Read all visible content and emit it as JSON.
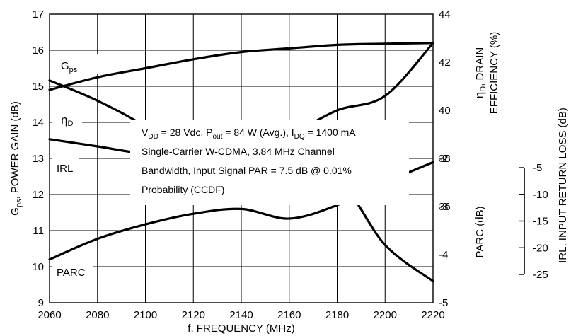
{
  "chart_data": {
    "type": "line",
    "xlabel": "f, FREQUENCY (MHz)",
    "x_ticks": [
      "2060",
      "2080",
      "2100",
      "2120",
      "2140",
      "2160",
      "2180",
      "2200",
      "2220"
    ],
    "xlim": [
      2060,
      2220
    ],
    "left_axis": {
      "label_main": "G",
      "label_sub": "ps",
      "label_rest": ", POWER GAIN (dB)",
      "ylim": [
        9,
        17
      ],
      "ticks": [
        "9",
        "10",
        "11",
        "12",
        "13",
        "14",
        "15",
        "16",
        "17"
      ]
    },
    "right_axis_upper": {
      "label_line1_sym": "η",
      "label_line1_sub": "D",
      "label_line1_rest": ", DRAIN",
      "label_line2": "EFFICIENCY (%)",
      "ylim": [
        32,
        44
      ],
      "ticks": [
        "44",
        "42",
        "40",
        "38",
        "36"
      ]
    },
    "right_axis_lower": {
      "label": "PARC (dB)",
      "ylim": [
        -5,
        1
      ],
      "ticks": [
        "-2",
        "-3",
        "-4",
        "-5"
      ]
    },
    "irl_axis": {
      "label": "IRL, INPUT RETURN LOSS (dB)",
      "ylim": [
        -25,
        -5
      ],
      "ticks": [
        "-5",
        "-10",
        "-15",
        "-20",
        "-25"
      ]
    },
    "annotation": {
      "line1": {
        "v": "V",
        "v_sub": "DD",
        "a": " = 28 Vdc, P",
        "p_sub": "out",
        "b": " = 84 W (Avg.), I",
        "i_sub": "DQ",
        "c": " = 1400 mA"
      },
      "line2": "Single-Carrier W-CDMA, 3.84 MHz Channel",
      "line3": "Bandwidth, Input Signal PAR = 7.5 dB @ 0.01%",
      "line4": "Probability (CCDF)"
    },
    "series": [
      {
        "name": "G",
        "name_sub": "ps",
        "axis": "left",
        "x": [
          2060,
          2080,
          2100,
          2120,
          2140,
          2160,
          2180,
          2200,
          2220
        ],
        "values": [
          14.9,
          15.25,
          15.5,
          15.75,
          15.95,
          16.05,
          16.15,
          16.18,
          16.2
        ]
      },
      {
        "name": "η",
        "name_sub": "D",
        "axis": "right_upper",
        "x": [
          2060,
          2080,
          2100,
          2120,
          2140,
          2160,
          2180,
          2200,
          2220
        ],
        "values": [
          38.8,
          38.5,
          38.2,
          38.2,
          38.5,
          39.0,
          40.0,
          40.6,
          42.8
        ]
      },
      {
        "name": "IRL",
        "axis": "irl",
        "x": [
          2060,
          2080,
          2100,
          2120,
          2140,
          2160,
          2180,
          2200,
          2220
        ],
        "values": [
          -9.6,
          -11.0,
          -12.8,
          -15.3,
          -17.5,
          -17.6,
          -16.5,
          -21.0,
          -23.5
        ]
      },
      {
        "name": "PARC",
        "axis": "right_lower",
        "x": [
          2060,
          2080,
          2100,
          2120,
          2140,
          2160,
          2180,
          2200,
          2220
        ],
        "values": [
          -4.1,
          -3.67,
          -3.37,
          -3.15,
          -3.05,
          -3.25,
          -2.97,
          -2.5,
          -2.08
        ]
      }
    ]
  }
}
